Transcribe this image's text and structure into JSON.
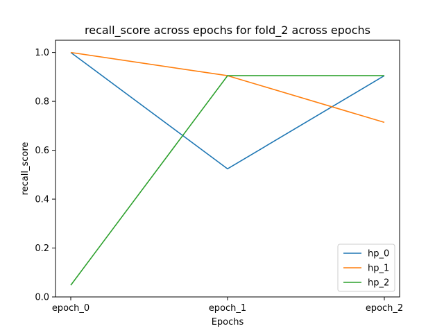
{
  "chart_data": {
    "type": "line",
    "title": "recall_score across epochs for fold_2 across epochs",
    "xlabel": "Epochs",
    "ylabel": "recall_score",
    "categories": [
      "epoch_0",
      "epoch_1",
      "epoch_2"
    ],
    "ylim": [
      0.0,
      1.05
    ],
    "yticks": [
      0.0,
      0.2,
      0.4,
      0.6,
      0.8,
      1.0
    ],
    "ytick_labels": [
      "0.0",
      "0.2",
      "0.4",
      "0.6",
      "0.8",
      "1.0"
    ],
    "grid": false,
    "legend_position": "bottom-right",
    "series": [
      {
        "name": "hp_0",
        "color": "#1f77b4",
        "values": [
          1.0,
          0.524,
          0.905
        ]
      },
      {
        "name": "hp_1",
        "color": "#ff7f0e",
        "values": [
          1.0,
          0.905,
          0.714
        ]
      },
      {
        "name": "hp_2",
        "color": "#2ca02c",
        "values": [
          0.048,
          0.905,
          0.905
        ]
      }
    ]
  }
}
